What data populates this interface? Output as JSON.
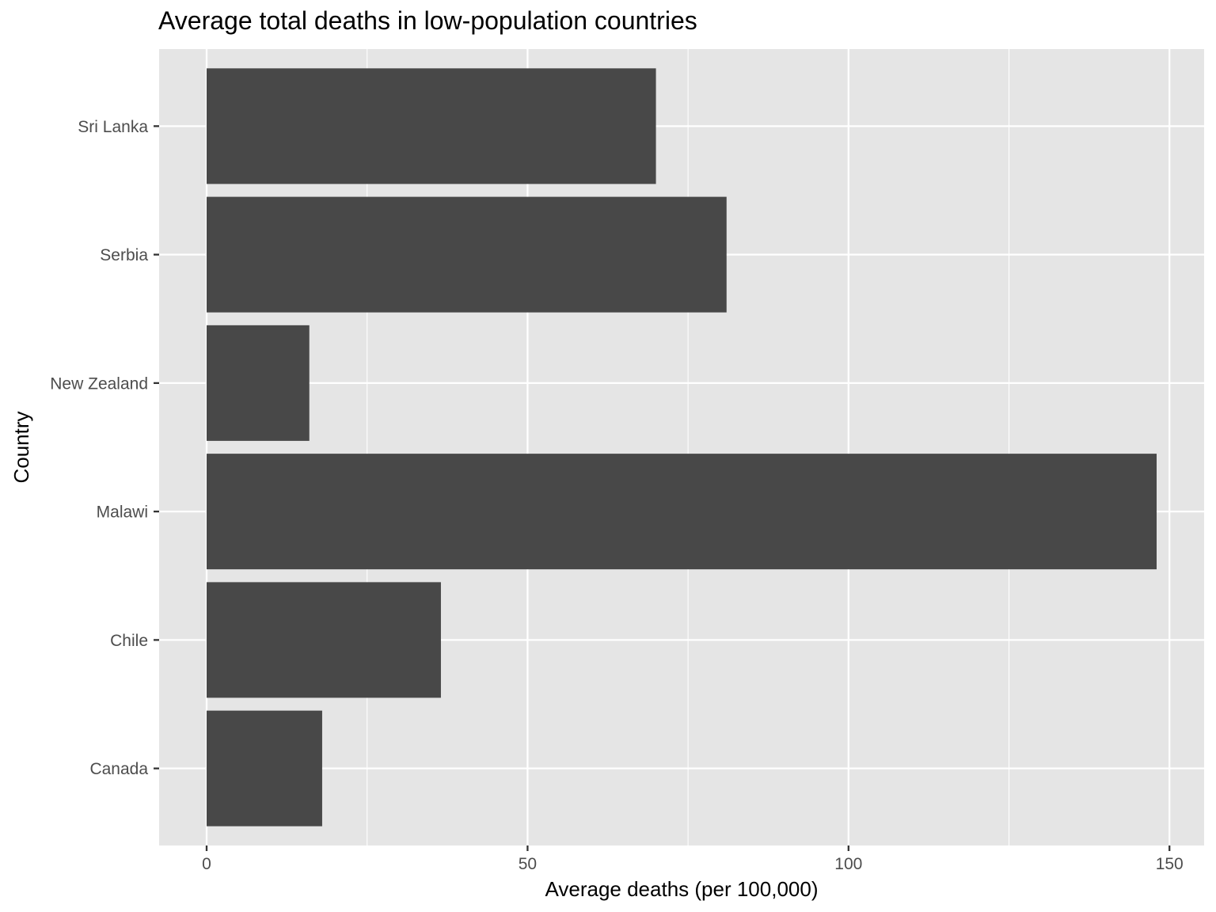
{
  "chart_data": {
    "type": "bar",
    "orientation": "horizontal",
    "title": "Average total deaths in low-population countries",
    "xlabel": "Average deaths (per 100,000)",
    "ylabel": "Country",
    "categories": [
      "Canada",
      "Chile",
      "Malawi",
      "New Zealand",
      "Serbia",
      "Sri Lanka"
    ],
    "values": [
      18,
      36.5,
      148,
      16,
      81,
      70
    ],
    "xlim": [
      -7.4,
      155.4
    ],
    "xticks": [
      0,
      50,
      100,
      150
    ],
    "xtick_labels": [
      "0",
      "50",
      "100",
      "150"
    ],
    "grid": true,
    "bar_color": "#484848",
    "panel_color": "#e5e5e5",
    "grid_color": "#ffffff"
  }
}
